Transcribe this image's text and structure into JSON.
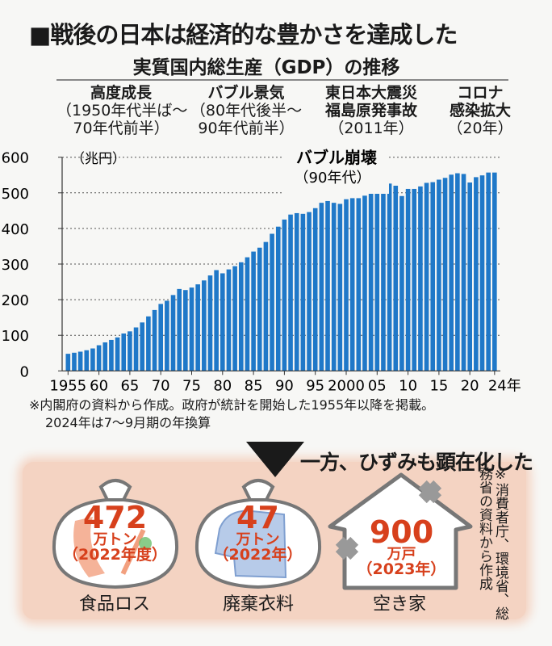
{
  "title": "■戦後の日本は経済的な豊かさを達成した",
  "subtitle": "実質国内総生産（GDP）の推移",
  "eras": [
    {
      "heading": "高度成長",
      "line2": "（1950年代半ば～",
      "line3": "70年代前半）"
    },
    {
      "heading": "バブル景気",
      "line2": "（80年代後半～",
      "line3": "90年代前半）"
    },
    {
      "heading": "東日本大震災",
      "line2": "福島原発事故",
      "line3": "（2011年）"
    },
    {
      "heading": "コロナ",
      "line2": "感染拡大",
      "line3": "（20年）"
    }
  ],
  "chart_data": {
    "type": "bar",
    "ylabel": "（兆円）",
    "ylim": [
      0,
      600
    ],
    "yticks": [
      0,
      100,
      200,
      300,
      400,
      500,
      600
    ],
    "grid": true,
    "bar_color": "#1f78c8",
    "xtick_labels": [
      {
        "year": 1955,
        "label": "1955"
      },
      {
        "year": 1960,
        "label": "60"
      },
      {
        "year": 1965,
        "label": "65"
      },
      {
        "year": 1970,
        "label": "70"
      },
      {
        "year": 1975,
        "label": "75"
      },
      {
        "year": 1980,
        "label": "80"
      },
      {
        "year": 1985,
        "label": "85"
      },
      {
        "year": 1990,
        "label": "90"
      },
      {
        "year": 1995,
        "label": "95"
      },
      {
        "year": 2000,
        "label": "2000"
      },
      {
        "year": 2005,
        "label": "05"
      },
      {
        "year": 2010,
        "label": "10"
      },
      {
        "year": 2015,
        "label": "15"
      },
      {
        "year": 2020,
        "label": "20"
      },
      {
        "year": 2024,
        "label": "24年"
      }
    ],
    "x": [
      1955,
      1956,
      1957,
      1958,
      1959,
      1960,
      1961,
      1962,
      1963,
      1964,
      1965,
      1966,
      1967,
      1968,
      1969,
      1970,
      1971,
      1972,
      1973,
      1974,
      1975,
      1976,
      1977,
      1978,
      1979,
      1980,
      1981,
      1982,
      1983,
      1984,
      1985,
      1986,
      1987,
      1988,
      1989,
      1990,
      1991,
      1992,
      1993,
      1994,
      1995,
      1996,
      1997,
      1998,
      1999,
      2000,
      2001,
      2002,
      2003,
      2004,
      2005,
      2006,
      2007,
      2008,
      2009,
      2010,
      2011,
      2012,
      2013,
      2014,
      2015,
      2016,
      2017,
      2018,
      2019,
      2020,
      2021,
      2022,
      2023,
      2024
    ],
    "values": [
      48,
      51,
      54,
      58,
      63,
      72,
      80,
      87,
      94,
      105,
      111,
      122,
      136,
      153,
      171,
      188,
      197,
      213,
      230,
      227,
      234,
      243,
      254,
      268,
      283,
      274,
      285,
      294,
      305,
      319,
      335,
      346,
      362,
      385,
      405,
      425,
      439,
      443,
      441,
      446,
      457,
      472,
      477,
      472,
      469,
      482,
      485,
      485,
      492,
      503,
      512,
      518,
      526,
      520,
      491,
      511,
      511,
      518,
      528,
      530,
      537,
      542,
      551,
      555,
      553,
      529,
      544,
      549,
      557,
      557
    ],
    "annotation": {
      "year": 1990,
      "label": "バブル崩壊",
      "sub": "（90年代）"
    }
  },
  "notes": {
    "line1": "※内閣府の資料から作成。政府が統計を開始した1955年以降を掲載。",
    "line2": "2024年は7～9月期の年換算"
  },
  "downside": {
    "heading": "一方、ひずみも顕在化した",
    "accent_color": "#d7401c",
    "panel_color": "#f4d3c2",
    "items": [
      {
        "value": "472",
        "unit": "万トン",
        "period": "（2022年度）",
        "label": "食品ロス",
        "icon": "garbage-bag-food-icon"
      },
      {
        "value": "47",
        "unit": "万トン",
        "period": "（2022年）",
        "label": "廃棄衣料",
        "icon": "garbage-bag-clothes-icon"
      },
      {
        "value": "900",
        "unit": "万戸",
        "period": "（2023年）",
        "label": "空き家",
        "icon": "house-icon"
      }
    ],
    "source": "※消費者庁、環境省、総務省の資料から作成"
  }
}
